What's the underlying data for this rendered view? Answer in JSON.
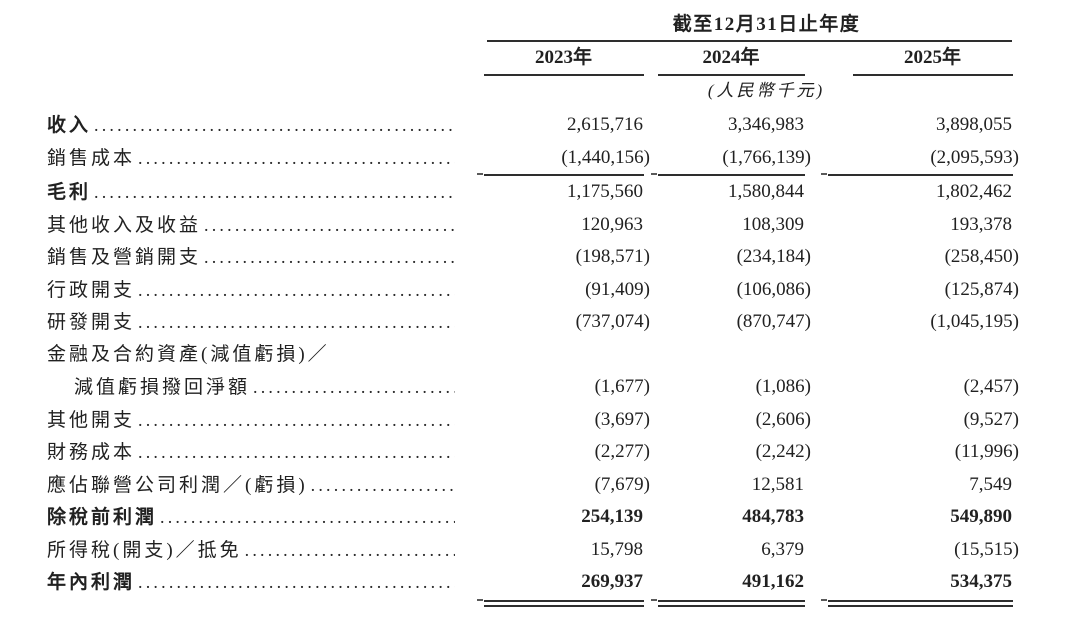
{
  "header": {
    "period_title": "截至12月31日止年度",
    "columns": [
      "2023年",
      "2024年",
      "2025年"
    ],
    "unit_note": "(人民幣千元)"
  },
  "rows": [
    {
      "label": "收入",
      "emphasis": true,
      "values": [
        "2,615,716",
        "3,346,983",
        "3,898,055"
      ]
    },
    {
      "label": "銷售成本",
      "emphasis": false,
      "rule_after": "single",
      "values": [
        "(1,440,156)",
        "(1,766,139)",
        "(2,095,593)"
      ]
    },
    {
      "label": "毛利",
      "emphasis": true,
      "values": [
        "1,175,560",
        "1,580,844",
        "1,802,462"
      ]
    },
    {
      "label": "其他收入及收益",
      "emphasis": false,
      "values": [
        "120,963",
        "108,309",
        "193,378"
      ]
    },
    {
      "label": "銷售及營銷開支",
      "emphasis": false,
      "values": [
        "(198,571)",
        "(234,184)",
        "(258,450)"
      ]
    },
    {
      "label": "行政開支",
      "emphasis": false,
      "values": [
        "(91,409)",
        "(106,086)",
        "(125,874)"
      ]
    },
    {
      "label": "研發開支",
      "emphasis": false,
      "values": [
        "(737,074)",
        "(870,747)",
        "(1,045,195)"
      ]
    },
    {
      "label": "金融及合約資產(減值虧損)／",
      "emphasis": false,
      "continuation": true,
      "values": [
        "",
        "",
        ""
      ]
    },
    {
      "label": "減值虧損撥回淨額",
      "emphasis": false,
      "indented": true,
      "values": [
        "(1,677)",
        "(1,086)",
        "(2,457)"
      ]
    },
    {
      "label": "其他開支",
      "emphasis": false,
      "values": [
        "(3,697)",
        "(2,606)",
        "(9,527)"
      ]
    },
    {
      "label": "財務成本",
      "emphasis": false,
      "values": [
        "(2,277)",
        "(2,242)",
        "(11,996)"
      ]
    },
    {
      "label": "應佔聯營公司利潤／(虧損)",
      "emphasis": false,
      "values": [
        "(7,679)",
        "12,581",
        "7,549"
      ]
    },
    {
      "label": "除稅前利潤",
      "emphasis": true,
      "bold_values": true,
      "values": [
        "254,139",
        "484,783",
        "549,890"
      ]
    },
    {
      "label": "所得稅(開支)／抵免",
      "emphasis": false,
      "values": [
        "15,798",
        "6,379",
        "(15,515)"
      ]
    },
    {
      "label": "年內利潤",
      "emphasis": true,
      "bold_values": true,
      "rule_after": "double",
      "values": [
        "269,937",
        "491,162",
        "534,375"
      ]
    }
  ]
}
